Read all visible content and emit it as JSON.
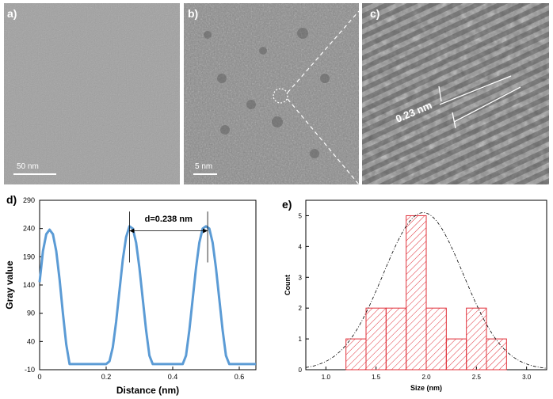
{
  "panels": {
    "a": {
      "label": "a)",
      "scalebar": "50 nm"
    },
    "b": {
      "label": "b)",
      "scalebar": "5 nm"
    },
    "c": {
      "label": "c)",
      "annotation": "0.23 nm"
    },
    "d": {
      "label": "d)",
      "annotation": "d=0.238 nm"
    },
    "e": {
      "label": "e)"
    }
  },
  "colors": {
    "line": "#5b9bd5",
    "bar_edge": "#e0303a",
    "bar_hatch": "#e0303a"
  },
  "chart_data": [
    {
      "panel": "d",
      "type": "line",
      "xlabel": "Distance (nm)",
      "ylabel": "Gray value",
      "xlim": [
        0,
        0.65
      ],
      "ylim": [
        -10,
        290
      ],
      "xticks": [
        0,
        0.2,
        0.4,
        0.6
      ],
      "yticks": [
        -10,
        40,
        90,
        140,
        190,
        240,
        290
      ],
      "series": [
        {
          "x": [
            0,
            0.01,
            0.02,
            0.03,
            0.04,
            0.05,
            0.06,
            0.07,
            0.08,
            0.09,
            0.1,
            0.2,
            0.21,
            0.22,
            0.23,
            0.24,
            0.25,
            0.26,
            0.27,
            0.28,
            0.29,
            0.3,
            0.31,
            0.32,
            0.33,
            0.34,
            0.43,
            0.44,
            0.45,
            0.46,
            0.47,
            0.48,
            0.49,
            0.5,
            0.51,
            0.52,
            0.53,
            0.54,
            0.55,
            0.56,
            0.57,
            0.58,
            0.65
          ],
          "y": [
            145,
            200,
            230,
            238,
            230,
            200,
            150,
            90,
            35,
            0,
            0,
            0,
            5,
            30,
            75,
            130,
            185,
            225,
            244,
            240,
            215,
            170,
            115,
            60,
            15,
            0,
            0,
            15,
            60,
            115,
            170,
            215,
            240,
            244,
            240,
            215,
            170,
            115,
            60,
            15,
            0,
            0,
            0
          ]
        }
      ],
      "annotations": [
        "d=0.238 nm"
      ]
    },
    {
      "panel": "e",
      "type": "bar",
      "xlabel": "Size (nm)",
      "ylabel": "Count",
      "xlim": [
        0.8,
        3.2
      ],
      "ylim": [
        0,
        5.5
      ],
      "xticks": [
        1.0,
        1.5,
        2.0,
        2.5,
        3.0
      ],
      "yticks": [
        0,
        1,
        2,
        3,
        4,
        5
      ],
      "bins": [
        [
          1.2,
          1.4
        ],
        [
          1.4,
          1.6
        ],
        [
          1.6,
          1.8
        ],
        [
          1.8,
          2.0
        ],
        [
          2.0,
          2.2
        ],
        [
          2.2,
          2.4
        ],
        [
          2.4,
          2.6
        ],
        [
          2.6,
          2.8
        ]
      ],
      "values": [
        1,
        2,
        2,
        5,
        2,
        1,
        2,
        1
      ],
      "fit": {
        "type": "gaussian",
        "center": 1.97,
        "amplitude": 5.1,
        "sigma": 0.4
      }
    }
  ]
}
